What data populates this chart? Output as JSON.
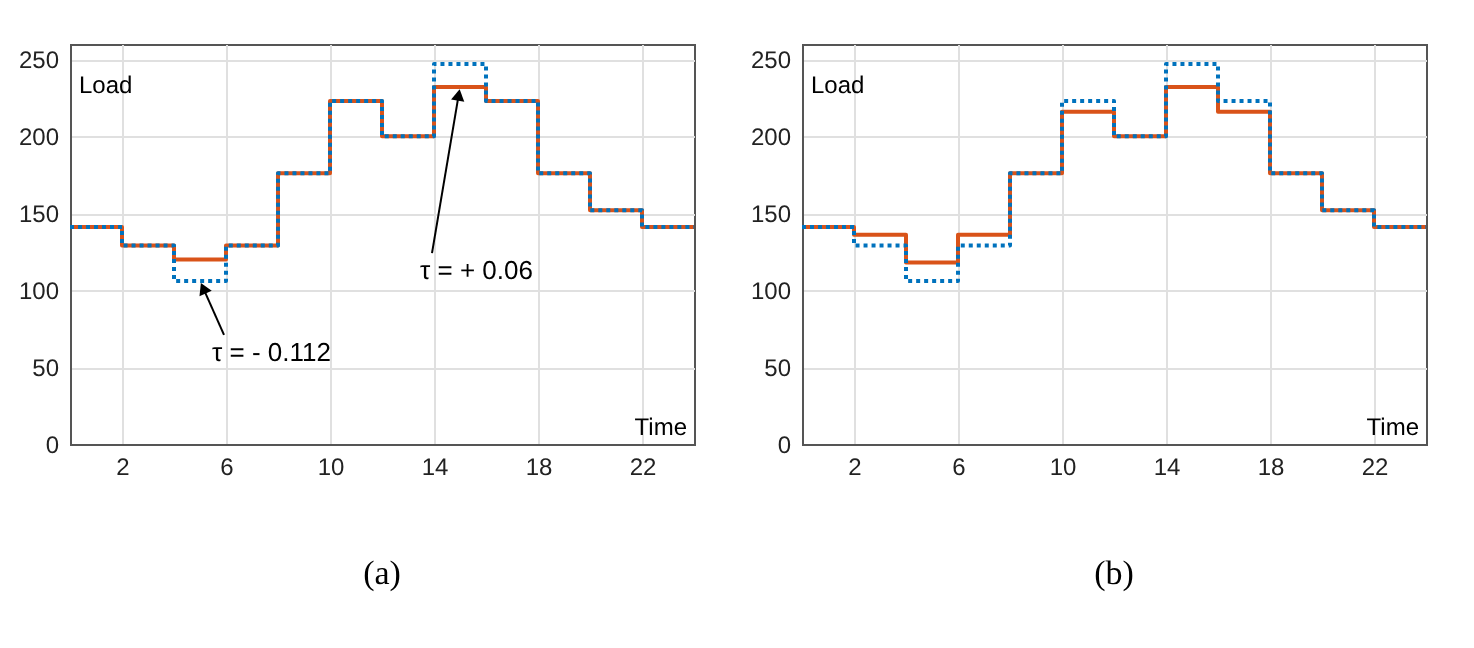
{
  "chart_data": [
    {
      "type": "step",
      "xlabel": "Time",
      "ylabel": "Load",
      "x": [
        0,
        2,
        4,
        6,
        8,
        10,
        12,
        14,
        16,
        18,
        20,
        22,
        24
      ],
      "xlim": [
        0,
        24
      ],
      "xticks": [
        2,
        6,
        10,
        14,
        18,
        22
      ],
      "ylim": [
        0,
        260
      ],
      "yticks": [
        0,
        50,
        100,
        150,
        200,
        250
      ],
      "grid": true,
      "marker": "none",
      "series": [
        {
          "color": "#d95319",
          "line_style": "solid",
          "values": [
            141,
            129,
            120,
            129,
            176,
            223,
            200,
            232,
            223,
            176,
            152,
            141,
            141
          ]
        },
        {
          "color": "#0072bd",
          "line_style": "dotted",
          "values": [
            141,
            129,
            106,
            129,
            176,
            223,
            200,
            247,
            223,
            176,
            152,
            141,
            141
          ]
        }
      ],
      "annotations": [
        {
          "text": "τ = - 0.112",
          "x": 5,
          "y": 106
        },
        {
          "text": "τ = + 0.06",
          "x": 15,
          "y": 232
        },
        "(a)"
      ]
    },
    {
      "type": "step",
      "xlabel": "Time",
      "ylabel": "Load",
      "x": [
        0,
        2,
        4,
        6,
        8,
        10,
        12,
        14,
        16,
        18,
        20,
        22,
        24
      ],
      "xlim": [
        0,
        24
      ],
      "xticks": [
        2,
        6,
        10,
        14,
        18,
        22
      ],
      "ylim": [
        0,
        260
      ],
      "yticks": [
        0,
        50,
        100,
        150,
        200,
        250
      ],
      "grid": true,
      "marker": "none",
      "series": [
        {
          "color": "#d95319",
          "line_style": "solid",
          "values": [
            141,
            136,
            118,
            136,
            176,
            216,
            200,
            232,
            216,
            176,
            152,
            141,
            141
          ]
        },
        {
          "color": "#0072bd",
          "line_style": "dotted",
          "values": [
            141,
            129,
            106,
            129,
            176,
            223,
            200,
            247,
            223,
            176,
            152,
            141,
            141
          ]
        }
      ],
      "annotations": [
        "(b)"
      ]
    }
  ]
}
